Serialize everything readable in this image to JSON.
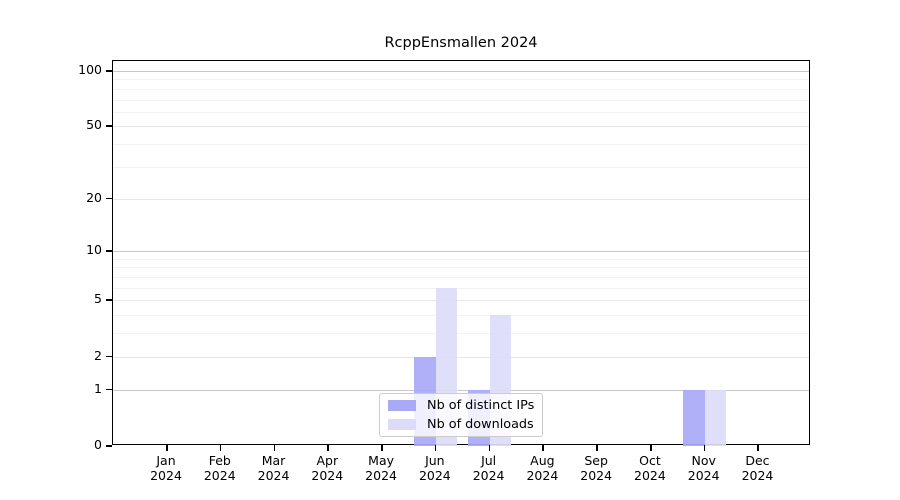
{
  "title": "RcppEnsmallen 2024",
  "legend": {
    "items": [
      {
        "label": "Nb of distinct IPs",
        "color": "#a9a9f7"
      },
      {
        "label": "Nb of downloads",
        "color": "#dcdcfa"
      }
    ]
  },
  "chart_data": {
    "type": "bar",
    "title": "RcppEnsmallen 2024",
    "categories": [
      "Jan 2024",
      "Feb 2024",
      "Mar 2024",
      "Apr 2024",
      "May 2024",
      "Jun 2024",
      "Jul 2024",
      "Aug 2024",
      "Sep 2024",
      "Oct 2024",
      "Nov 2024",
      "Dec 2024"
    ],
    "series": [
      {
        "name": "Nb of distinct IPs",
        "color": "#a9a9f7",
        "values": [
          0,
          0,
          0,
          0,
          0,
          2,
          1,
          0,
          0,
          0,
          1,
          0
        ]
      },
      {
        "name": "Nb of downloads",
        "color": "#dcdcfa",
        "values": [
          0,
          0,
          0,
          0,
          0,
          6,
          4,
          0,
          0,
          0,
          1,
          0
        ]
      }
    ],
    "xlabel": "",
    "ylabel": "",
    "y_axis": {
      "scale": "log1p",
      "ticks": [
        0,
        1,
        2,
        5,
        10,
        20,
        50,
        100
      ],
      "emphasized_gridlines": [
        1,
        10,
        100
      ],
      "light_gridlines": [
        2,
        5,
        20,
        50
      ],
      "minor_gridlines": [
        3,
        4,
        6,
        7,
        8,
        9,
        30,
        40,
        60,
        70,
        80,
        90
      ],
      "range": [
        0,
        113
      ]
    },
    "grid": true,
    "legend_position": "inside-bottom-center",
    "colors": {
      "axis": "#000000",
      "grid_emphasized": "#c8c8c8",
      "grid_light": "#e7e7e7",
      "grid_minor": "#f3f3f3",
      "legend_border": "#cccccc"
    }
  }
}
